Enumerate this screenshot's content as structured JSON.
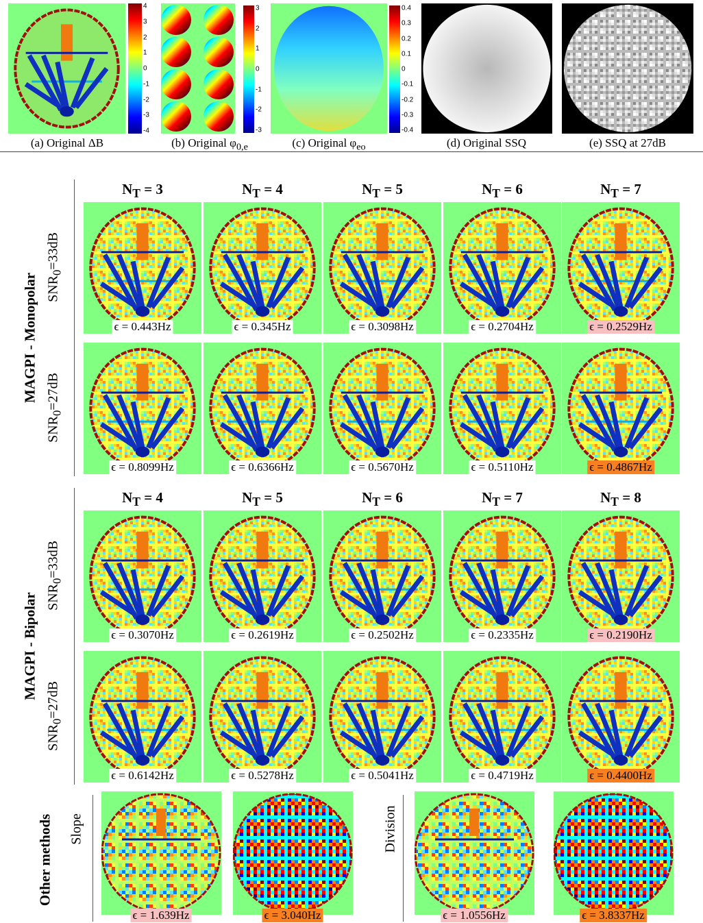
{
  "top": {
    "captions": [
      {
        "text": "(a) Original ΔB"
      },
      {
        "text": "(b) Original φ",
        "sub": "0,e"
      },
      {
        "text": "(c) Original φ",
        "sub": "eo"
      },
      {
        "text": "(d) Original SSQ"
      },
      {
        "text": "(e) SSQ at 27dB"
      }
    ],
    "colorbars": [
      [
        "4",
        "3",
        "2",
        "1",
        "0",
        "-1",
        "-2",
        "-3",
        "-4"
      ],
      [
        "3",
        "2",
        "1",
        "0",
        "-1",
        "-2",
        "-3"
      ],
      [
        "0.4",
        "0.3",
        "0.2",
        "0.1",
        "0",
        "-0.1",
        "-0.2",
        "-0.3",
        "-0.4"
      ]
    ]
  },
  "sections": [
    {
      "title": "MAGPI - Monopolar",
      "headers": [
        {
          "sym": "N",
          "sub": "T",
          "eq": " = 3"
        },
        {
          "sym": "N",
          "sub": "T",
          "eq": " = 4"
        },
        {
          "sym": "N",
          "sub": "T",
          "eq": " = 5"
        },
        {
          "sym": "N",
          "sub": "T",
          "eq": " = 6"
        },
        {
          "sym": "N",
          "sub": "T",
          "eq": " = 7"
        }
      ],
      "rows": [
        {
          "label": {
            "text": "SNR",
            "sub": "0",
            "rest": "=33dB"
          },
          "errors": [
            "ϵ = 0.443Hz",
            "ϵ = 0.345Hz",
            "ϵ = 0.3098Hz",
            "ϵ = 0.2704Hz",
            "ϵ = 0.2529Hz"
          ]
        },
        {
          "label": {
            "text": "SNR",
            "sub": "0",
            "rest": "=27dB"
          },
          "errors": [
            "ϵ = 0.8099Hz",
            "ϵ = 0.6366Hz",
            "ϵ = 0.5670Hz",
            "ϵ = 0.5110Hz",
            "ϵ = 0.4867Hz"
          ]
        }
      ]
    },
    {
      "title": "MAGPI - Bipolar",
      "headers": [
        {
          "sym": "N",
          "sub": "T",
          "eq": " = 4"
        },
        {
          "sym": "N",
          "sub": "T",
          "eq": " = 5"
        },
        {
          "sym": "N",
          "sub": "T",
          "eq": " = 6"
        },
        {
          "sym": "N",
          "sub": "T",
          "eq": " = 7"
        },
        {
          "sym": "N",
          "sub": "T",
          "eq": " = 8"
        }
      ],
      "rows": [
        {
          "label": {
            "text": "SNR",
            "sub": "0",
            "rest": "=33dB"
          },
          "errors": [
            "ϵ = 0.3070Hz",
            "ϵ = 0.2619Hz",
            "ϵ = 0.2502Hz",
            "ϵ = 0.2335Hz",
            "ϵ = 0.2190Hz"
          ]
        },
        {
          "label": {
            "text": "SNR",
            "sub": "0",
            "rest": "=27dB"
          },
          "errors": [
            "ϵ = 0.6142Hz",
            "ϵ = 0.5278Hz",
            "ϵ = 0.5041Hz",
            "ϵ = 0.4719Hz",
            "ϵ = 0.4400Hz"
          ]
        }
      ]
    }
  ],
  "other": {
    "title": "Other methods",
    "groups": [
      {
        "label": "Slope",
        "errors": [
          "ϵ = 1.639Hz",
          "ϵ = 3.040Hz"
        ]
      },
      {
        "label": "Division",
        "errors": [
          "ϵ = 1.0556Hz",
          "ϵ = 3.8337Hz"
        ]
      }
    ]
  }
}
